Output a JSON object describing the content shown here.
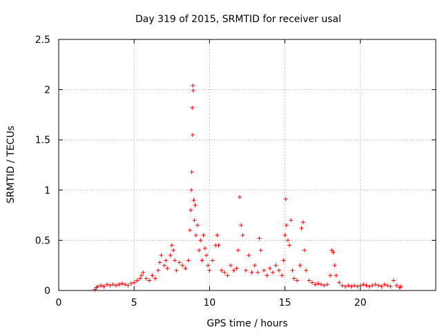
{
  "chart_data": {
    "type": "scatter",
    "title": "Day 319 of 2015, SRMTID for receiver usal",
    "xlabel": "GPS time / hours",
    "ylabel": "SRMTID / TECUs",
    "xlim": [
      0,
      25
    ],
    "ylim": [
      0,
      2.5
    ],
    "xticks": [
      0,
      5,
      10,
      15,
      20
    ],
    "yticks": [
      0,
      0.5,
      1,
      1.5,
      2,
      2.5
    ],
    "xtick_labels": [
      "0",
      "5",
      "10",
      "15",
      "20"
    ],
    "ytick_labels": [
      "0",
      "0.5",
      "1",
      "1.5",
      "2",
      "2.5"
    ],
    "grid": true,
    "marker": "plus",
    "color": "#ff0000",
    "series": [
      {
        "name": "SRMTID",
        "x": [
          2.4,
          2.5,
          2.6,
          2.8,
          3.0,
          3.2,
          3.4,
          3.6,
          3.8,
          4.0,
          4.2,
          4.4,
          4.6,
          4.8,
          5.0,
          5.2,
          5.4,
          5.5,
          5.6,
          5.8,
          6.0,
          6.2,
          6.4,
          6.6,
          6.7,
          6.8,
          7.0,
          7.1,
          7.2,
          7.4,
          7.5,
          7.6,
          7.7,
          7.8,
          8.0,
          8.2,
          8.4,
          8.6,
          8.7,
          8.75,
          8.8,
          8.82,
          8.85,
          8.88,
          8.9,
          8.92,
          8.95,
          9.0,
          9.05,
          9.1,
          9.2,
          9.3,
          9.4,
          9.5,
          9.6,
          9.7,
          9.8,
          9.9,
          10.0,
          10.2,
          10.4,
          10.5,
          10.6,
          10.8,
          11.0,
          11.2,
          11.4,
          11.6,
          11.8,
          11.9,
          12.0,
          12.1,
          12.2,
          12.4,
          12.6,
          12.8,
          13.0,
          13.2,
          13.3,
          13.4,
          13.6,
          13.8,
          14.0,
          14.2,
          14.4,
          14.6,
          14.8,
          14.9,
          15.0,
          15.05,
          15.1,
          15.2,
          15.3,
          15.4,
          15.5,
          15.6,
          15.8,
          16.0,
          16.1,
          16.2,
          16.3,
          16.4,
          16.6,
          16.8,
          17.0,
          17.2,
          17.4,
          17.6,
          17.8,
          18.0,
          18.1,
          18.2,
          18.3,
          18.4,
          18.6,
          18.8,
          19.0,
          19.2,
          19.4,
          19.6,
          19.8,
          20.0,
          20.2,
          20.4,
          20.6,
          20.8,
          21.0,
          21.2,
          21.4,
          21.6,
          21.8,
          22.0,
          22.2,
          22.4,
          22.6,
          22.7
        ],
        "y": [
          0.01,
          0.03,
          0.04,
          0.05,
          0.04,
          0.06,
          0.05,
          0.06,
          0.05,
          0.06,
          0.07,
          0.06,
          0.05,
          0.07,
          0.08,
          0.1,
          0.12,
          0.15,
          0.18,
          0.12,
          0.1,
          0.15,
          0.12,
          0.2,
          0.28,
          0.35,
          0.25,
          0.3,
          0.22,
          0.35,
          0.45,
          0.4,
          0.3,
          0.2,
          0.28,
          0.25,
          0.22,
          0.3,
          0.6,
          0.8,
          1.0,
          1.18,
          1.82,
          1.55,
          2.04,
          1.99,
          0.9,
          0.7,
          0.85,
          0.55,
          0.65,
          0.4,
          0.5,
          0.3,
          0.55,
          0.42,
          0.35,
          0.25,
          0.2,
          0.3,
          0.45,
          0.55,
          0.45,
          0.2,
          0.18,
          0.15,
          0.25,
          0.2,
          0.22,
          0.4,
          0.93,
          0.65,
          0.55,
          0.2,
          0.35,
          0.18,
          0.25,
          0.18,
          0.52,
          0.4,
          0.2,
          0.15,
          0.22,
          0.18,
          0.25,
          0.2,
          0.15,
          0.3,
          0.55,
          0.91,
          0.65,
          0.5,
          0.45,
          0.7,
          0.2,
          0.12,
          0.1,
          0.25,
          0.62,
          0.68,
          0.4,
          0.2,
          0.1,
          0.08,
          0.06,
          0.07,
          0.06,
          0.05,
          0.06,
          0.15,
          0.4,
          0.38,
          0.25,
          0.15,
          0.08,
          0.05,
          0.04,
          0.05,
          0.04,
          0.05,
          0.04,
          0.05,
          0.06,
          0.05,
          0.04,
          0.05,
          0.06,
          0.05,
          0.04,
          0.06,
          0.05,
          0.04,
          0.1,
          0.05,
          0.03,
          0.04
        ]
      }
    ]
  }
}
